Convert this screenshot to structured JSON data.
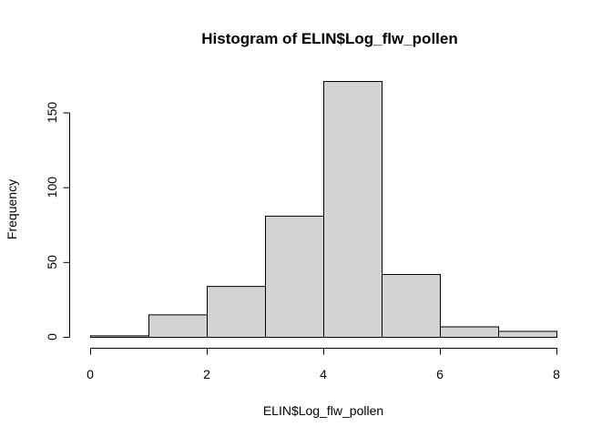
{
  "chart_data": {
    "type": "bar",
    "title": "Histogram of ELIN$Log_flw_pollen",
    "xlabel": "ELIN$Log_flw_pollen",
    "ylabel": "Frequency",
    "bins": [
      {
        "from": 0,
        "to": 1,
        "count": 1
      },
      {
        "from": 1,
        "to": 2,
        "count": 15
      },
      {
        "from": 2,
        "to": 3,
        "count": 34
      },
      {
        "from": 3,
        "to": 4,
        "count": 81
      },
      {
        "from": 4,
        "to": 5,
        "count": 171
      },
      {
        "from": 5,
        "to": 6,
        "count": 42
      },
      {
        "from": 6,
        "to": 7,
        "count": 7
      },
      {
        "from": 7,
        "to": 8,
        "count": 4
      }
    ],
    "xlim": [
      0,
      8
    ],
    "ylim": [
      0,
      171
    ],
    "x_ticks": [
      0,
      2,
      4,
      6,
      8
    ],
    "y_ticks": [
      0,
      50,
      100,
      150
    ],
    "bar_color": "#d3d3d3",
    "grid": false
  }
}
